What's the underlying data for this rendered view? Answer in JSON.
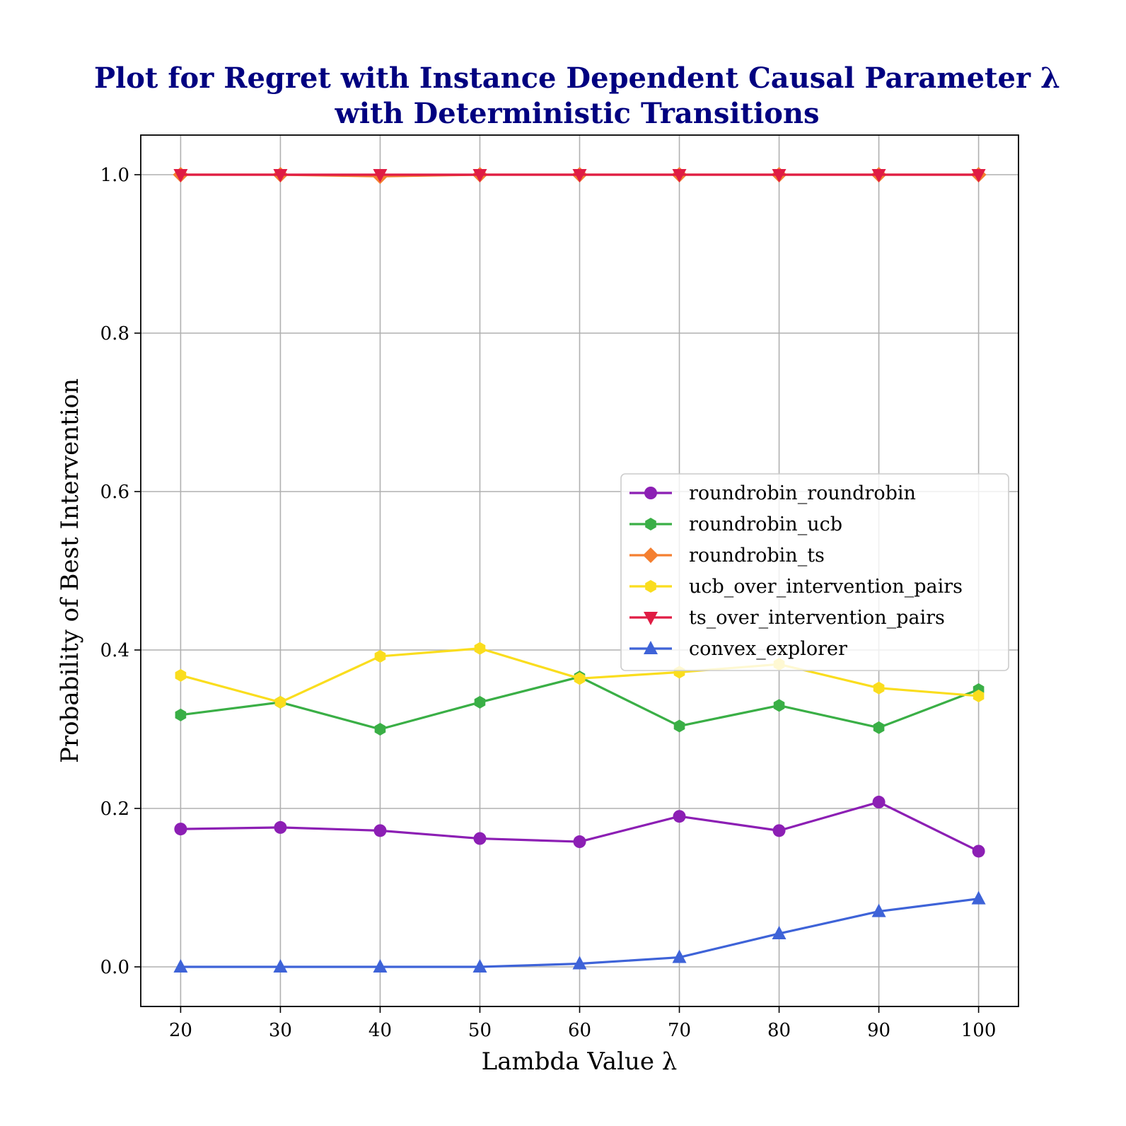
{
  "chart_data": {
    "type": "line",
    "title": "Plot for Regret with Instance Dependent Causal Parameter λ\nwith Deterministic Transitions",
    "title_lines": [
      "Plot for Regret with Instance Dependent Causal Parameter λ",
      "with Deterministic Transitions"
    ],
    "xlabel": "Lambda Value λ",
    "ylabel": "Probability of Best Intervention",
    "x": [
      20,
      30,
      40,
      50,
      60,
      70,
      80,
      90,
      100
    ],
    "xlim": [
      16,
      104
    ],
    "ylim": [
      -0.05,
      1.05
    ],
    "x_ticks": [
      20,
      30,
      40,
      50,
      60,
      70,
      80,
      90,
      100
    ],
    "y_ticks": [
      0.0,
      0.2,
      0.4,
      0.6,
      0.8,
      1.0
    ],
    "x_tick_labels": [
      "20",
      "30",
      "40",
      "50",
      "60",
      "70",
      "80",
      "90",
      "100"
    ],
    "y_tick_labels": [
      "0.0",
      "0.2",
      "0.4",
      "0.6",
      "0.8",
      "1.0"
    ],
    "grid": true,
    "legend_position": "center-right",
    "series": [
      {
        "name": "roundrobin_roundrobin",
        "color": "#8c1fb4",
        "marker": "circle",
        "values": [
          0.174,
          0.176,
          0.172,
          0.162,
          0.158,
          0.19,
          0.172,
          0.208,
          0.146
        ]
      },
      {
        "name": "roundrobin_ucb",
        "color": "#3aaf46",
        "marker": "hexagon",
        "values": [
          0.318,
          0.334,
          0.3,
          0.334,
          0.366,
          0.304,
          0.33,
          0.302,
          0.35
        ]
      },
      {
        "name": "roundrobin_ts",
        "color": "#f47f30",
        "marker": "diamond",
        "values": [
          1.0,
          1.0,
          0.998,
          1.0,
          1.0,
          1.0,
          1.0,
          1.0,
          1.0
        ]
      },
      {
        "name": "ucb_over_intervention_pairs",
        "color": "#fadd1e",
        "marker": "hexagon",
        "values": [
          0.368,
          0.334,
          0.392,
          0.402,
          0.364,
          0.372,
          0.382,
          0.352,
          0.342
        ]
      },
      {
        "name": "ts_over_intervention_pairs",
        "color": "#e01c44",
        "marker": "triangle-down",
        "values": [
          1.0,
          1.0,
          1.0,
          1.0,
          1.0,
          1.0,
          1.0,
          1.0,
          1.0
        ]
      },
      {
        "name": "convex_explorer",
        "color": "#3e63d8",
        "marker": "triangle-up",
        "values": [
          0.0,
          0.0,
          0.0,
          0.0,
          0.004,
          0.012,
          0.042,
          0.07,
          0.086
        ]
      }
    ]
  }
}
